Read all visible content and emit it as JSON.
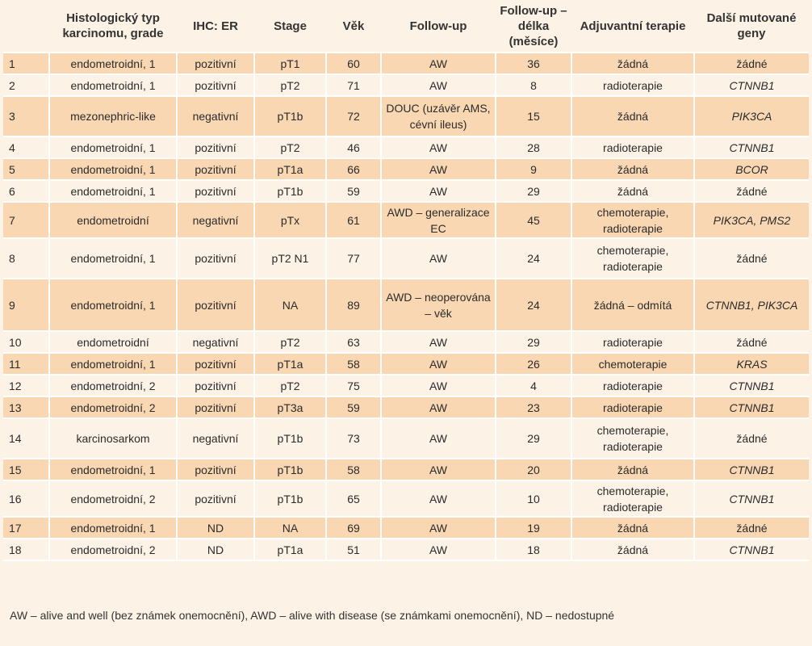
{
  "table": {
    "headers": [
      "",
      "Histologický typ karcinomu, grade",
      "IHC: ER",
      "Stage",
      "Věk",
      "Follow-up",
      "Follow-up – délka (měsíce)",
      "Adjuvantní terapie",
      "Další mutované geny"
    ],
    "rows": [
      [
        "1",
        "endometroidní, 1",
        "pozitivní",
        "pT1",
        "60",
        "AW",
        "36",
        "žádná",
        "žádné"
      ],
      [
        "2",
        "endometroidní, 1",
        "pozitivní",
        "pT2",
        "71",
        "AW",
        "8",
        "radioterapie",
        "CTNNB1"
      ],
      [
        "3",
        "mezonephric-like",
        "negativní",
        "pT1b",
        "72",
        "DOUC (uzávěr AMS, cévní ileus)",
        "15",
        "žádná",
        "PIK3CA"
      ],
      [
        "4",
        "endometroidní, 1",
        "pozitivní",
        "pT2",
        "46",
        "AW",
        "28",
        "radioterapie",
        "CTNNB1"
      ],
      [
        "5",
        "endometroidní, 1",
        "pozitivní",
        "pT1a",
        "66",
        "AW",
        "9",
        "žádná",
        "BCOR"
      ],
      [
        "6",
        "endometroidní, 1",
        "pozitivní",
        "pT1b",
        "59",
        "AW",
        "29",
        "žádná",
        "žádné"
      ],
      [
        "7",
        "endometroidní",
        "negativní",
        "pTx",
        "61",
        "AWD – generalizace EC",
        "45",
        "chemoterapie, radioterapie",
        "PIK3CA, PMS2"
      ],
      [
        "8",
        "endometroidní, 1",
        "pozitivní",
        "pT2 N1",
        "77",
        "AW",
        "24",
        "chemoterapie, radioterapie",
        "žádné"
      ],
      [
        "9",
        "endometroidní, 1",
        "pozitivní",
        "NA",
        "89",
        "AWD – neoperována – věk",
        "24",
        "žádná – odmítá",
        "CTNNB1, PIK3CA"
      ],
      [
        "10",
        "endometroidní",
        "negativní",
        "pT2",
        "63",
        "AW",
        "29",
        "radioterapie",
        "žádné"
      ],
      [
        "11",
        "endometroidní, 1",
        "pozitivní",
        "pT1a",
        "58",
        "AW",
        "26",
        "chemoterapie",
        "KRAS"
      ],
      [
        "12",
        "endometroidní, 2",
        "pozitivní",
        "pT2",
        "75",
        "AW",
        "4",
        "radioterapie",
        "CTNNB1"
      ],
      [
        "13",
        "endometroidní, 2",
        "pozitivní",
        "pT3a",
        "59",
        "AW",
        "23",
        "radioterapie",
        "CTNNB1"
      ],
      [
        "14",
        "karcinosarkom",
        "negativní",
        "pT1b",
        "73",
        "AW",
        "29",
        "chemoterapie, radioterapie",
        "žádné"
      ],
      [
        "15",
        "endometroidní, 1",
        "pozitivní",
        "pT1b",
        "58",
        "AW",
        "20",
        "žádná",
        "CTNNB1"
      ],
      [
        "16",
        "endometroidní, 2",
        "pozitivní",
        "pT1b",
        "65",
        "AW",
        "10",
        "chemoterapie, radioterapie",
        "CTNNB1"
      ],
      [
        "17",
        "endometroidní, 1",
        "ND",
        "NA",
        "69",
        "AW",
        "19",
        "žádná",
        "žádné"
      ],
      [
        "18",
        "endometroidní, 2",
        "ND",
        "pT1a",
        "51",
        "AW",
        "18",
        "žádná",
        "CTNNB1"
      ]
    ]
  },
  "footnote": "AW – alive and well (bez známek onemocnění), AWD – alive with disease (se známkami onemocnění), ND – nedostupné",
  "colors": {
    "shaded_row": "#f9d7b3",
    "plain_row": "#fdf2e6",
    "text": "#2b2b2b"
  }
}
